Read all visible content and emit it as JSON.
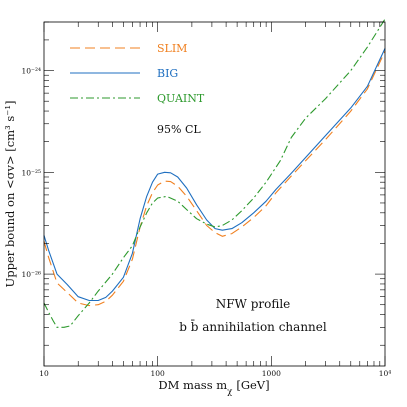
{
  "chart_data": {
    "type": "line",
    "xlabel": "DM mass m",
    "xlabel_sub": "χ",
    "xlabel_unit": "[GeV]",
    "ylabel": "Upper bound on <σv> [cm³ s⁻¹]",
    "x_scale": "log",
    "y_scale": "log",
    "xlim": [
      10,
      10000
    ],
    "ylim": [
      1.25e-27,
      3e-24
    ],
    "x_ticks": [
      {
        "value": 10,
        "label": "10"
      },
      {
        "value": 100,
        "label": "100"
      },
      {
        "value": 1000,
        "label": "1000"
      },
      {
        "value": 10000,
        "label": "10⁴"
      }
    ],
    "y_ticks": [
      {
        "value": 1e-26,
        "label": "10⁻²⁶"
      },
      {
        "value": 1e-25,
        "label": "10⁻²⁵"
      },
      {
        "value": 1e-24,
        "label": "10⁻²⁴"
      }
    ],
    "grid": false,
    "legend_position": "top-left",
    "confidence_label": "95% CL",
    "annotations": [
      "NFW profile",
      "b b̄ annihilation channel"
    ],
    "series": [
      {
        "name": "SLIM",
        "color": "#f08020",
        "dash": "dashed",
        "points": [
          [
            10,
            2.1e-26
          ],
          [
            11,
            1.45e-26
          ],
          [
            13,
            8.2e-27
          ],
          [
            16,
            6.6e-27
          ],
          [
            20,
            5.2e-27
          ],
          [
            25,
            4.9e-27
          ],
          [
            30,
            5e-27
          ],
          [
            35,
            5.4e-27
          ],
          [
            40,
            6.2e-27
          ],
          [
            50,
            8.5e-27
          ],
          [
            60,
            1.4e-26
          ],
          [
            70,
            2.9e-26
          ],
          [
            80,
            4.7e-26
          ],
          [
            90,
            6.3e-26
          ],
          [
            100,
            7.5e-26
          ],
          [
            115,
            8.2e-26
          ],
          [
            130,
            8.1e-26
          ],
          [
            150,
            7.3e-26
          ],
          [
            180,
            5.8e-26
          ],
          [
            220,
            4.2e-26
          ],
          [
            270,
            3e-26
          ],
          [
            320,
            2.55e-26
          ],
          [
            370,
            2.35e-26
          ],
          [
            450,
            2.5e-26
          ],
          [
            550,
            2.9e-26
          ],
          [
            700,
            3.6e-26
          ],
          [
            900,
            4.7e-26
          ],
          [
            1100,
            6.3e-26
          ],
          [
            1500,
            9.2e-26
          ],
          [
            2000,
            1.3e-25
          ],
          [
            3000,
            2.1e-25
          ],
          [
            5000,
            4e-25
          ],
          [
            7000,
            6.6e-25
          ],
          [
            10000,
            1.55e-24
          ]
        ]
      },
      {
        "name": "BIG",
        "color": "#1f6fc0",
        "dash": "solid",
        "points": [
          [
            10,
            2.4e-26
          ],
          [
            11,
            1.7e-26
          ],
          [
            13,
            1e-26
          ],
          [
            16,
            7.9e-27
          ],
          [
            20,
            6e-27
          ],
          [
            25,
            5.5e-27
          ],
          [
            30,
            5.5e-27
          ],
          [
            35,
            5.9e-27
          ],
          [
            40,
            6.8e-27
          ],
          [
            50,
            9.3e-27
          ],
          [
            60,
            1.6e-26
          ],
          [
            70,
            3.5e-26
          ],
          [
            80,
            5.8e-26
          ],
          [
            90,
            8e-26
          ],
          [
            100,
            9.6e-26
          ],
          [
            115,
            1e-25
          ],
          [
            130,
            9.9e-26
          ],
          [
            150,
            9e-26
          ],
          [
            180,
            7e-26
          ],
          [
            220,
            4.8e-26
          ],
          [
            270,
            3.4e-26
          ],
          [
            320,
            2.8e-26
          ],
          [
            370,
            2.7e-26
          ],
          [
            450,
            2.8e-26
          ],
          [
            550,
            3.2e-26
          ],
          [
            700,
            4e-26
          ],
          [
            900,
            5.2e-26
          ],
          [
            1100,
            6.8e-26
          ],
          [
            1500,
            9.8e-26
          ],
          [
            2000,
            1.4e-25
          ],
          [
            3000,
            2.3e-25
          ],
          [
            5000,
            4.3e-25
          ],
          [
            7000,
            7e-25
          ],
          [
            10000,
            1.65e-24
          ]
        ]
      },
      {
        "name": "QUAINT",
        "color": "#2e9a2e",
        "dash": "dashdot",
        "points": [
          [
            10,
            5.2e-27
          ],
          [
            11,
            4.2e-27
          ],
          [
            12,
            3.5e-27
          ],
          [
            13,
            3e-27
          ],
          [
            15,
            3e-27
          ],
          [
            17,
            3.1e-27
          ],
          [
            20,
            3.9e-27
          ],
          [
            25,
            5.2e-27
          ],
          [
            30,
            6.8e-27
          ],
          [
            40,
            1e-26
          ],
          [
            50,
            1.45e-26
          ],
          [
            60,
            1.9e-26
          ],
          [
            70,
            2.9e-26
          ],
          [
            80,
            4e-26
          ],
          [
            90,
            5e-26
          ],
          [
            100,
            5.6e-26
          ],
          [
            120,
            5.8e-26
          ],
          [
            150,
            5.2e-26
          ],
          [
            180,
            4.3e-26
          ],
          [
            220,
            3.5e-26
          ],
          [
            270,
            3.1e-26
          ],
          [
            320,
            2.9e-26
          ],
          [
            370,
            3e-26
          ],
          [
            450,
            3.4e-26
          ],
          [
            550,
            4.2e-26
          ],
          [
            700,
            5.6e-26
          ],
          [
            900,
            8e-26
          ],
          [
            1200,
            1.3e-25
          ],
          [
            1500,
            2.2e-25
          ],
          [
            2000,
            3.4e-25
          ],
          [
            3000,
            5.3e-25
          ],
          [
            5000,
            1e-24
          ],
          [
            7000,
            1.7e-24
          ],
          [
            10000,
            3.2e-24
          ]
        ]
      }
    ]
  }
}
